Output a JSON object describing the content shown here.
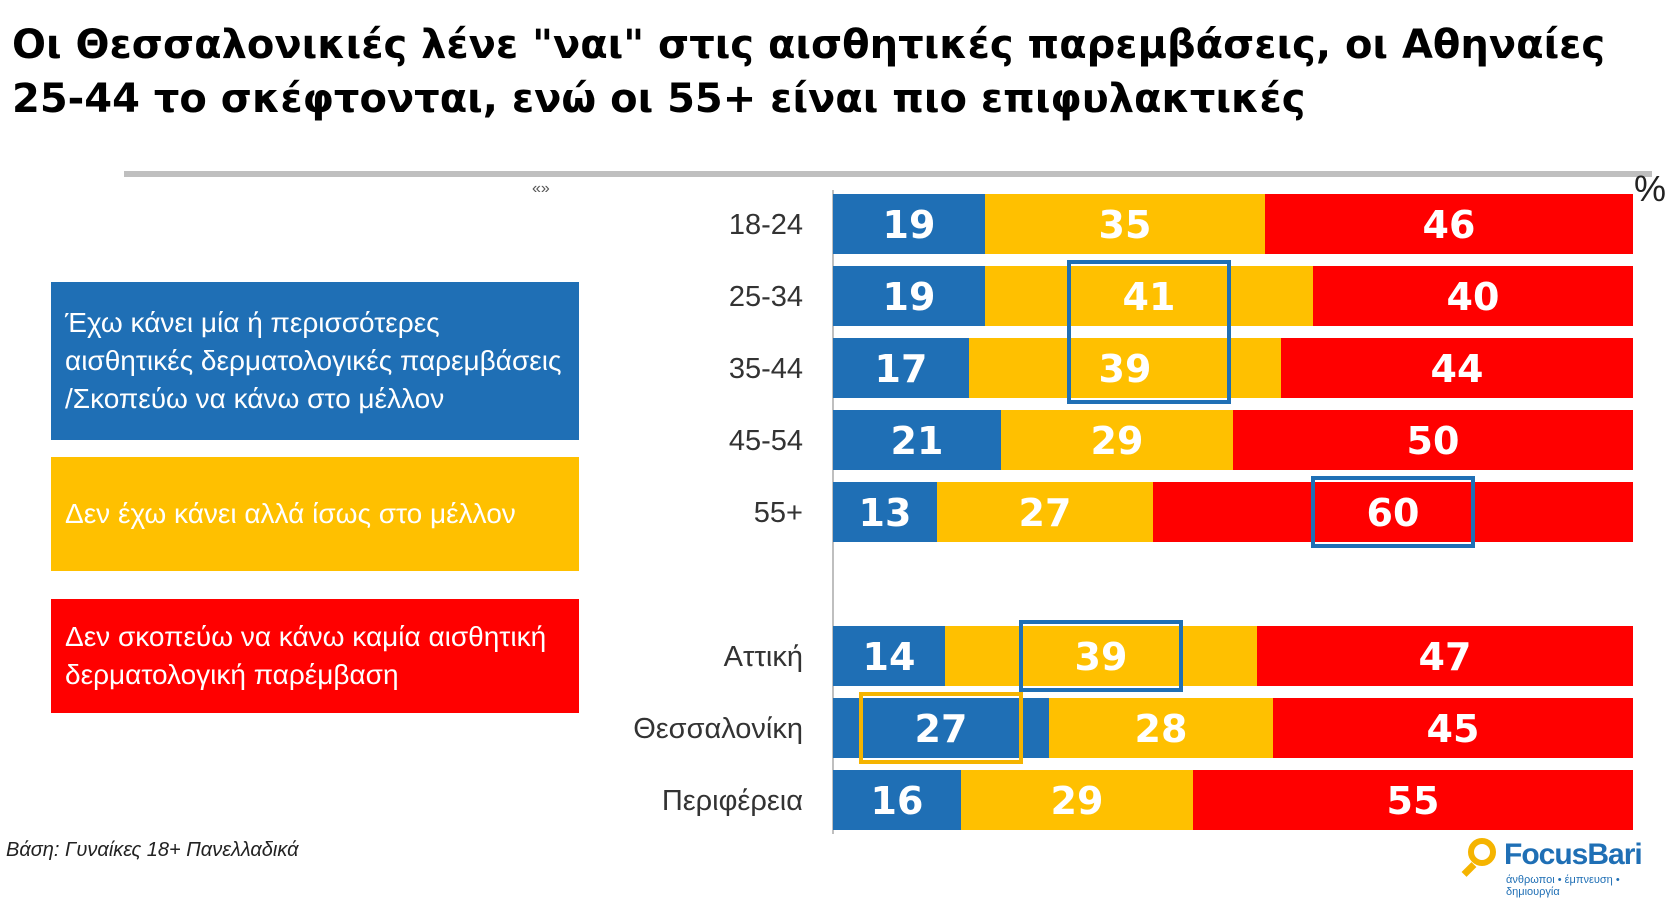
{
  "title": {
    "line1": "Οι Θεσσαλονικιές λένε \"ναι\" στις αισθητικές παρεμβάσεις, οι Αθηναίες",
    "line2": "25-44 το σκέφτονται, ενώ οι 55+ είναι πιο επιφυλακτικές"
  },
  "unit_label": "%",
  "quote_mark": "«»",
  "legend": [
    {
      "label": "Έχω κάνει μία ή περισσότερες αισθητικές δερματολογικές παρεμβάσεις /Σκοπεύω να κάνω στο μέλλον",
      "color": "#1f6fb5"
    },
    {
      "label": "Δεν έχω κάνει αλλά ίσως στο μέλλον",
      "color": "#ffc000"
    },
    {
      "label": "Δεν σκοπεύω να κάνω καμία αισθητική δερματολογική παρέμβαση",
      "color": "#ff0000"
    }
  ],
  "base_note": "Βάση: Γυναίκες 18+ Πανελλαδικά",
  "logo": {
    "name": "FocusBari",
    "tagline": "άνθρωποι • έμπνευση • δημιουργία"
  },
  "chart_data": {
    "type": "bar",
    "orientation": "horizontal",
    "stacked": true,
    "normalized": true,
    "categories": [
      "18-24",
      "25-34",
      "35-44",
      "45-54",
      "55+",
      "Αττική",
      "Θεσσαλονίκη",
      "Περιφέρεια"
    ],
    "groups": [
      [
        "18-24",
        "25-34",
        "35-44",
        "45-54",
        "55+"
      ],
      [
        "Αττική",
        "Θεσσαλονίκη",
        "Περιφέρεια"
      ]
    ],
    "series": [
      {
        "values": [
          19,
          19,
          17,
          21,
          13,
          14,
          27,
          16
        ],
        "color": "#1f6fb5"
      },
      {
        "values": [
          35,
          41,
          39,
          29,
          27,
          39,
          28,
          29
        ],
        "color": "#ffc000"
      },
      {
        "values": [
          46,
          40,
          44,
          50,
          60,
          47,
          45,
          55
        ],
        "color": "#ff0000"
      }
    ],
    "highlights": [
      {
        "category": "25-34",
        "series": 1,
        "border_color": "#1f6fb5"
      },
      {
        "category": "35-44",
        "series": 1,
        "border_color": "#1f6fb5"
      },
      {
        "category": "55+",
        "series": 2,
        "border_color": "#1f6fb5"
      },
      {
        "category": "Αττική",
        "series": 1,
        "border_color": "#1f6fb5"
      },
      {
        "category": "Θεσσαλονίκη",
        "series": 0,
        "border_color": "#f5b400"
      }
    ],
    "xlim": [
      0,
      100
    ],
    "grid": false,
    "legend_position": "left"
  }
}
